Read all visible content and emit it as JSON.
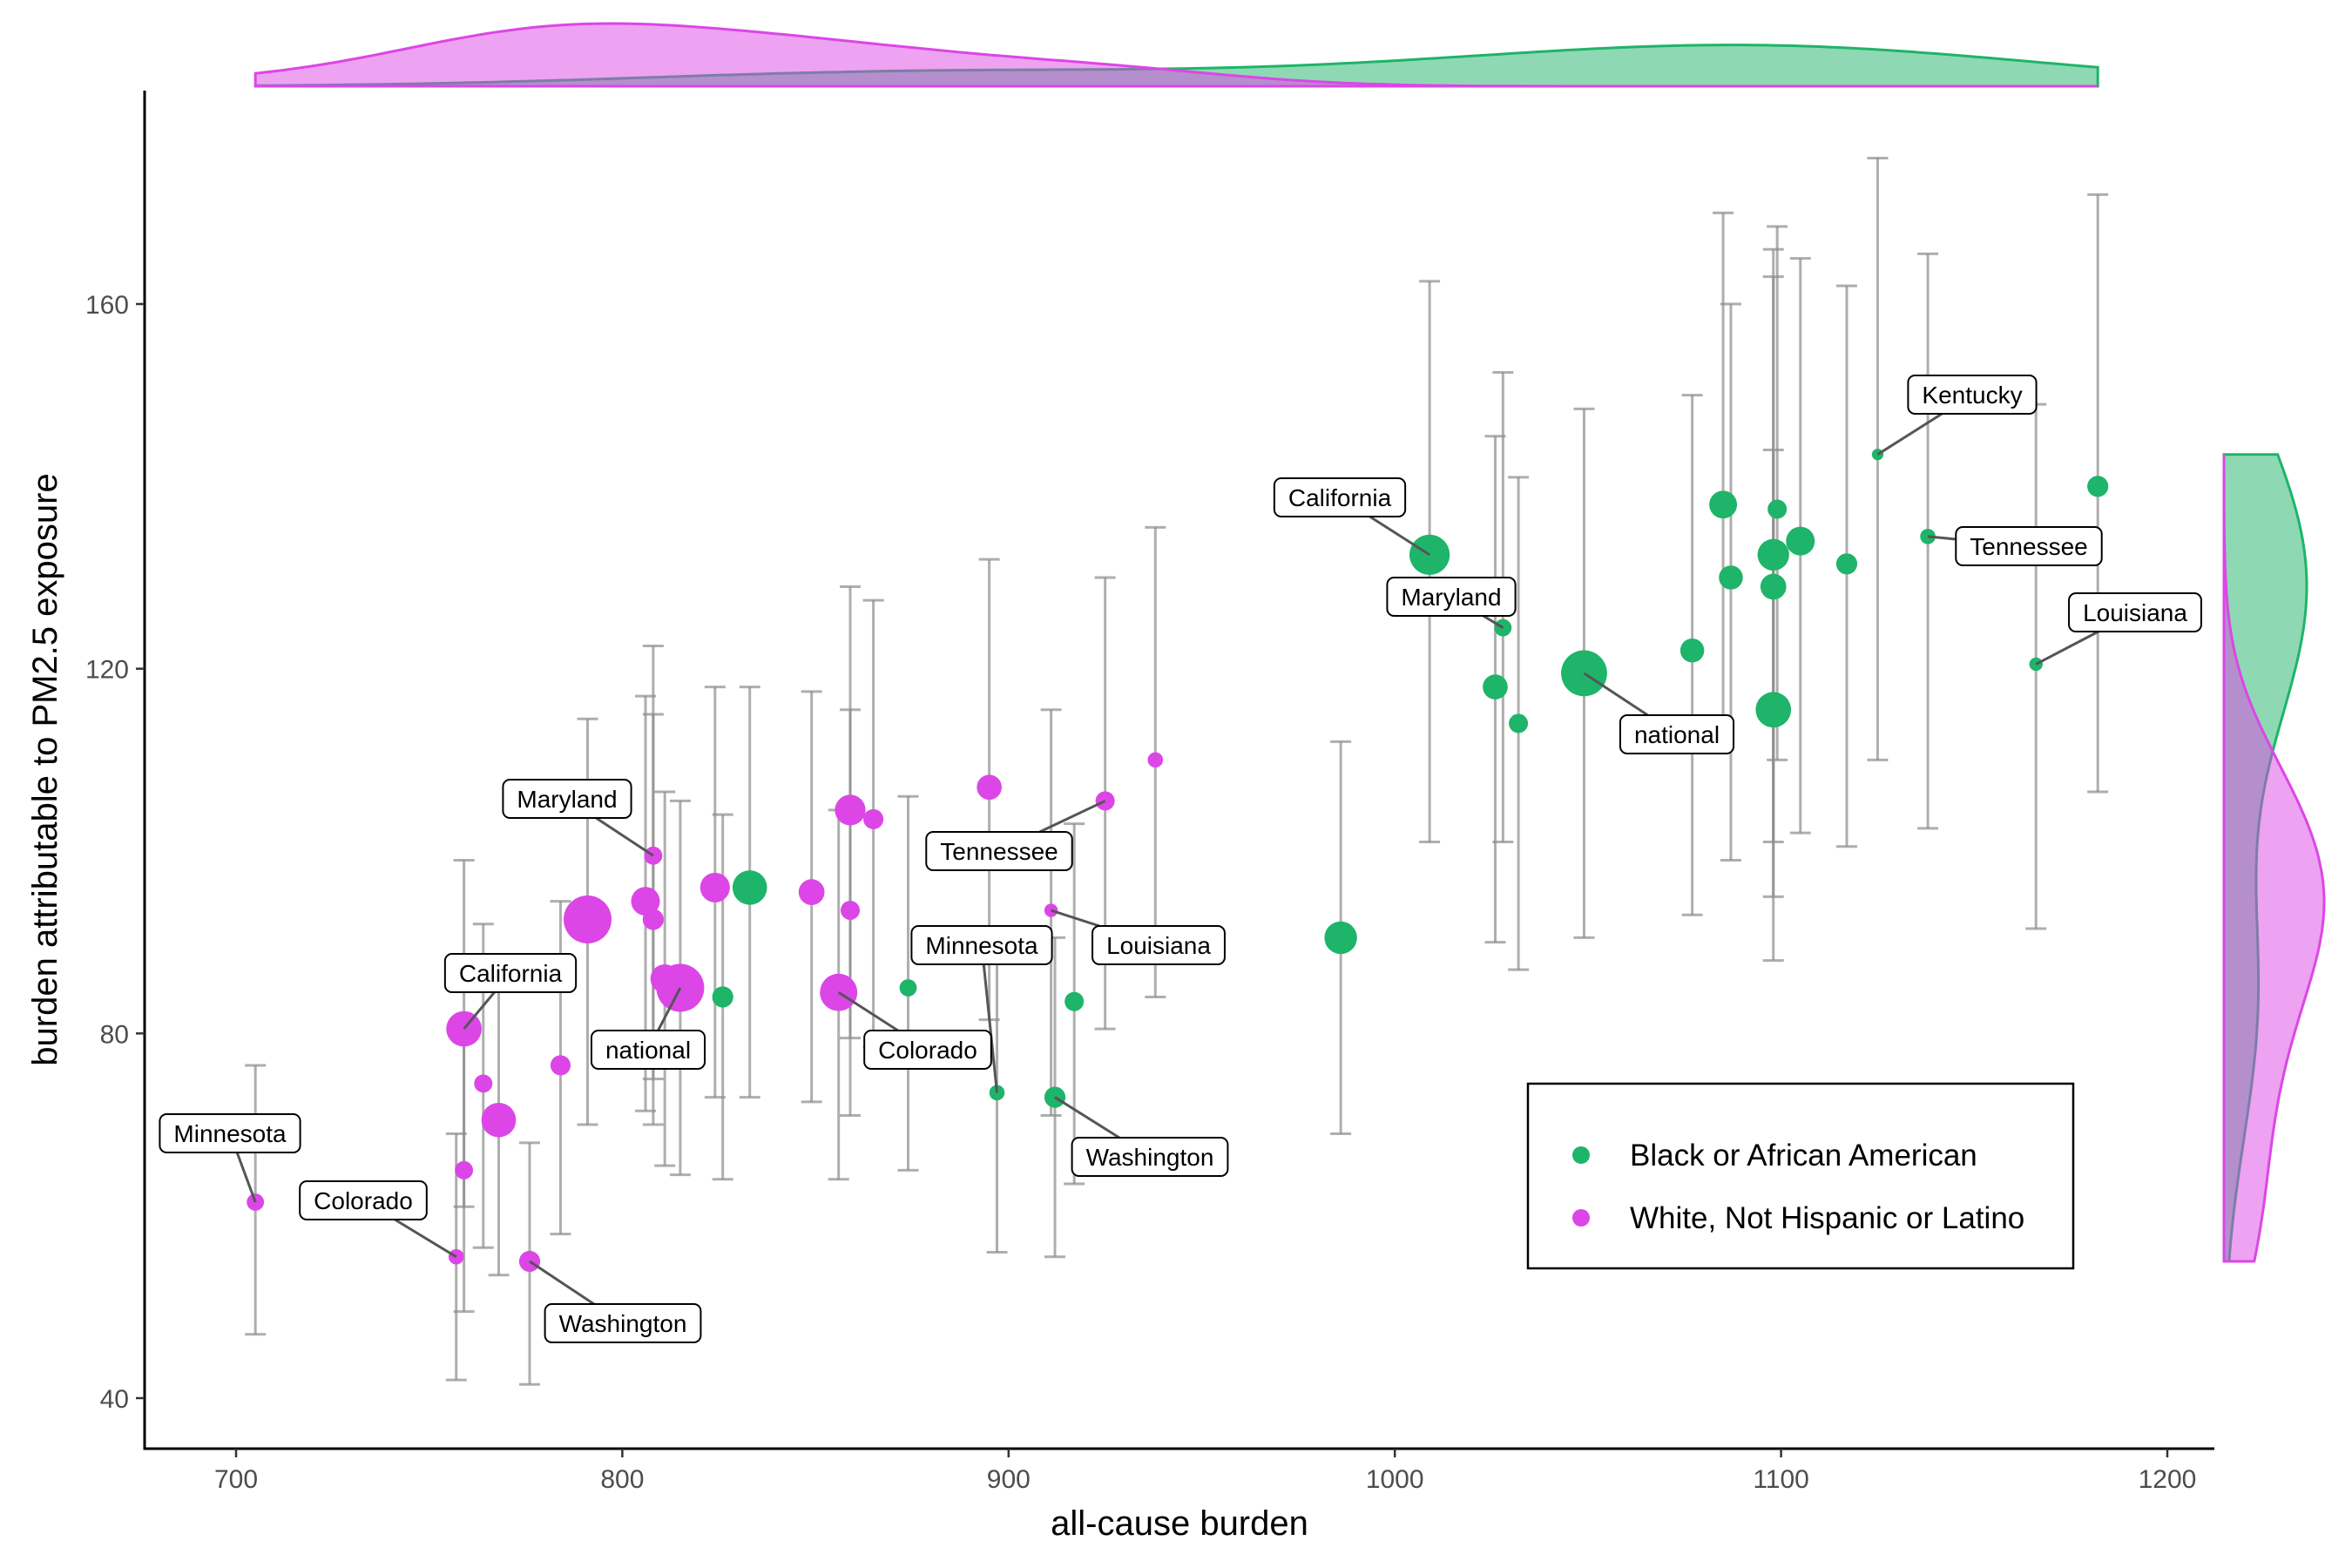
{
  "chart_data": {
    "type": "scatter",
    "title": "",
    "xlabel": "all-cause burden",
    "ylabel": "burden attributable to PM2.5 exposure",
    "xlim": [
      678,
      1212
    ],
    "ylim": [
      34.5,
      179
    ],
    "xticks": [
      700,
      800,
      900,
      1000,
      1100,
      1200
    ],
    "yticks": [
      40,
      80,
      120,
      160
    ],
    "grid": false,
    "legend_position": "bottom-right",
    "marginal_density": {
      "top": "x",
      "right": "y"
    },
    "colors": {
      "Black or African American": "#1eb469",
      "White, Not Hispanic or Latino": "#dc46e6"
    },
    "series": [
      {
        "name": "Black or African American",
        "color": "#1eb469",
        "points": [
          {
            "x": 1009,
            "y": 132.5,
            "ylo": 101,
            "yhi": 162.5,
            "size": 4.2
          },
          {
            "x": 1049,
            "y": 119.5,
            "ylo": 90.5,
            "yhi": 148.5,
            "size": 4.8
          },
          {
            "x": 1028,
            "y": 124.5,
            "ylo": 101,
            "yhi": 152.5,
            "size": 1.8
          },
          {
            "x": 1026,
            "y": 118,
            "ylo": 90,
            "yhi": 145.5,
            "size": 2.6
          },
          {
            "x": 1032,
            "y": 114,
            "ylo": 87,
            "yhi": 141,
            "size": 2.0
          },
          {
            "x": 1077,
            "y": 122,
            "ylo": 93,
            "yhi": 150,
            "size": 2.5
          },
          {
            "x": 1085,
            "y": 138,
            "ylo": 113,
            "yhi": 170,
            "size": 2.9
          },
          {
            "x": 1087,
            "y": 130,
            "ylo": 99,
            "yhi": 160,
            "size": 2.5
          },
          {
            "x": 1098,
            "y": 132.5,
            "ylo": 101,
            "yhi": 166,
            "size": 3.3
          },
          {
            "x": 1099,
            "y": 137.5,
            "ylo": 110,
            "yhi": 168.5,
            "size": 2.0
          },
          {
            "x": 1098,
            "y": 129,
            "ylo": 95,
            "yhi": 163,
            "size": 2.7
          },
          {
            "x": 1098,
            "y": 115.5,
            "ylo": 88,
            "yhi": 144,
            "size": 3.7
          },
          {
            "x": 1105,
            "y": 134,
            "ylo": 102,
            "yhi": 165,
            "size": 3.0
          },
          {
            "x": 1117,
            "y": 131.5,
            "ylo": 100.5,
            "yhi": 162,
            "size": 2.2
          },
          {
            "x": 1125,
            "y": 143.5,
            "ylo": 110,
            "yhi": 176,
            "size": 1.2
          },
          {
            "x": 1138,
            "y": 134.5,
            "ylo": 102.5,
            "yhi": 165.5,
            "size": 1.6
          },
          {
            "x": 1166,
            "y": 120.5,
            "ylo": 91.5,
            "yhi": 149,
            "size": 1.4
          },
          {
            "x": 1182,
            "y": 140,
            "ylo": 106.5,
            "yhi": 172,
            "size": 2.2
          },
          {
            "x": 986,
            "y": 90.5,
            "ylo": 69,
            "yhi": 112,
            "size": 3.4
          },
          {
            "x": 833,
            "y": 96,
            "ylo": 73,
            "yhi": 118,
            "size": 3.6
          },
          {
            "x": 826,
            "y": 84,
            "ylo": 64,
            "yhi": 104,
            "size": 2.2
          },
          {
            "x": 874,
            "y": 85,
            "ylo": 65,
            "yhi": 106,
            "size": 1.8
          },
          {
            "x": 897,
            "y": 73.5,
            "ylo": 56,
            "yhi": 91,
            "size": 1.6
          },
          {
            "x": 912,
            "y": 73,
            "ylo": 55.5,
            "yhi": 90.5,
            "size": 2.2
          },
          {
            "x": 917,
            "y": 83.5,
            "ylo": 63.5,
            "yhi": 103,
            "size": 2.0
          }
        ]
      },
      {
        "name": "White, Not Hispanic or Latino",
        "color": "#dc46e6",
        "points": [
          {
            "x": 705,
            "y": 61.5,
            "ylo": 47,
            "yhi": 76.5,
            "size": 1.8
          },
          {
            "x": 757,
            "y": 55.5,
            "ylo": 42,
            "yhi": 69,
            "size": 1.6
          },
          {
            "x": 759,
            "y": 65,
            "ylo": 49.5,
            "yhi": 80.5,
            "size": 1.9
          },
          {
            "x": 759,
            "y": 80.5,
            "ylo": 61,
            "yhi": 99,
            "size": 3.7
          },
          {
            "x": 764,
            "y": 74.5,
            "ylo": 56.5,
            "yhi": 92,
            "size": 1.9
          },
          {
            "x": 768,
            "y": 70.5,
            "ylo": 53.5,
            "yhi": 87.5,
            "size": 3.6
          },
          {
            "x": 776,
            "y": 55,
            "ylo": 41.5,
            "yhi": 68,
            "size": 2.2
          },
          {
            "x": 784,
            "y": 76.5,
            "ylo": 58,
            "yhi": 94.5,
            "size": 2.1
          },
          {
            "x": 791,
            "y": 92.5,
            "ylo": 70,
            "yhi": 114.5,
            "size": 5.0
          },
          {
            "x": 806,
            "y": 94.5,
            "ylo": 71.5,
            "yhi": 117,
            "size": 3.0
          },
          {
            "x": 808,
            "y": 99.5,
            "ylo": 75,
            "yhi": 122.5,
            "size": 1.9
          },
          {
            "x": 808,
            "y": 92.5,
            "ylo": 70,
            "yhi": 115,
            "size": 2.2
          },
          {
            "x": 811,
            "y": 86,
            "ylo": 65.5,
            "yhi": 106.5,
            "size": 3.0
          },
          {
            "x": 815,
            "y": 85,
            "ylo": 64.5,
            "yhi": 105.5,
            "size": 5.0
          },
          {
            "x": 824,
            "y": 96,
            "ylo": 73,
            "yhi": 118,
            "size": 3.1
          },
          {
            "x": 849,
            "y": 95.5,
            "ylo": 72.5,
            "yhi": 117.5,
            "size": 2.7
          },
          {
            "x": 856,
            "y": 84.5,
            "ylo": 64,
            "yhi": 104.5,
            "size": 3.9
          },
          {
            "x": 859,
            "y": 104.5,
            "ylo": 79.5,
            "yhi": 129,
            "size": 3.2
          },
          {
            "x": 859,
            "y": 93.5,
            "ylo": 71,
            "yhi": 115.5,
            "size": 2.0
          },
          {
            "x": 865,
            "y": 103.5,
            "ylo": 78.5,
            "yhi": 127.5,
            "size": 2.1
          },
          {
            "x": 895,
            "y": 107,
            "ylo": 81.5,
            "yhi": 132,
            "size": 2.6
          },
          {
            "x": 911,
            "y": 93.5,
            "ylo": 71,
            "yhi": 115.5,
            "size": 1.4
          },
          {
            "x": 925,
            "y": 105.5,
            "ylo": 80.5,
            "yhi": 130,
            "size": 2.0
          },
          {
            "x": 938,
            "y": 110,
            "ylo": 84,
            "yhi": 135.5,
            "size": 1.6
          }
        ]
      }
    ],
    "annotations": [
      {
        "text": "California",
        "x": 1009,
        "y": 132.5
      },
      {
        "text": "Maryland",
        "x": 1028,
        "y": 124.5
      },
      {
        "text": "national",
        "x": 1049,
        "y": 119.5
      },
      {
        "text": "Kentucky",
        "x": 1125,
        "y": 143.5
      },
      {
        "text": "Tennessee",
        "x": 1138,
        "y": 134.5
      },
      {
        "text": "Louisiana",
        "x": 1166,
        "y": 120.5
      },
      {
        "text": "Minnesota",
        "x": 897,
        "y": 73.5
      },
      {
        "text": "Washington",
        "x": 912,
        "y": 73
      },
      {
        "text": "Maryland",
        "x": 808,
        "y": 99.5
      },
      {
        "text": "California",
        "x": 759,
        "y": 80.5
      },
      {
        "text": "national",
        "x": 815,
        "y": 85
      },
      {
        "text": "Minnesota",
        "x": 705,
        "y": 61.5
      },
      {
        "text": "Colorado",
        "x": 757,
        "y": 55.5
      },
      {
        "text": "Washington",
        "x": 776,
        "y": 55
      },
      {
        "text": "Colorado",
        "x": 856,
        "y": 84.5
      },
      {
        "text": "Tennessee",
        "x": 925,
        "y": 105.5
      },
      {
        "text": "Louisiana",
        "x": 911,
        "y": 93.5
      }
    ]
  }
}
